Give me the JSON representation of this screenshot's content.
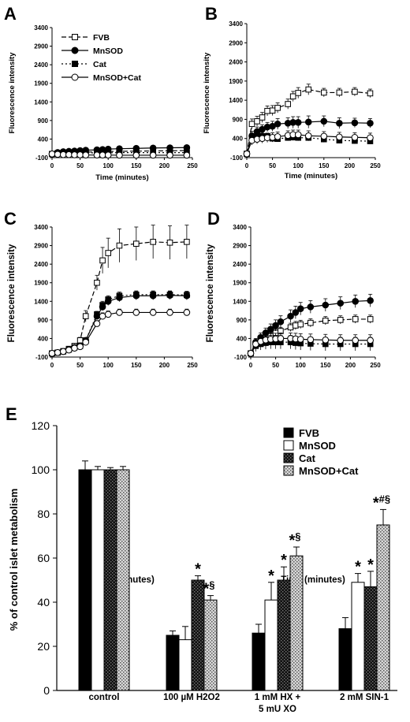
{
  "chart_data": [
    {
      "panel": "A",
      "type": "line",
      "xlabel": "Time (minutes)",
      "ylabel": "Fluorescence intensity",
      "xlim": [
        0,
        250
      ],
      "ylim": [
        -100,
        3400
      ],
      "xticks": [
        0,
        50,
        100,
        150,
        200,
        250
      ],
      "yticks": [
        -100,
        400,
        900,
        1400,
        1900,
        2400,
        2900,
        3400
      ],
      "legend": "top-left",
      "series": [
        {
          "name": "FVB",
          "x": [
            0,
            10,
            20,
            30,
            40,
            50,
            60,
            80,
            90,
            100,
            120,
            150,
            180,
            210,
            240
          ],
          "y": [
            0,
            20,
            30,
            35,
            40,
            45,
            50,
            55,
            60,
            65,
            70,
            75,
            80,
            85,
            90
          ],
          "err": [
            10,
            10,
            10,
            10,
            10,
            10,
            10,
            10,
            10,
            10,
            10,
            10,
            10,
            10,
            10
          ]
        },
        {
          "name": "MnSOD",
          "x": [
            0,
            10,
            20,
            30,
            40,
            50,
            60,
            80,
            90,
            100,
            120,
            150,
            180,
            210,
            240
          ],
          "y": [
            0,
            40,
            60,
            70,
            80,
            90,
            100,
            110,
            120,
            130,
            140,
            150,
            160,
            165,
            170
          ],
          "err": [
            15,
            15,
            15,
            15,
            15,
            15,
            15,
            15,
            15,
            15,
            15,
            15,
            15,
            15,
            15
          ]
        },
        {
          "name": "Cat",
          "x": [
            0,
            10,
            20,
            30,
            40,
            50,
            60,
            80,
            90,
            100,
            120,
            150,
            180,
            210,
            240
          ],
          "y": [
            0,
            10,
            15,
            20,
            20,
            25,
            25,
            30,
            30,
            30,
            35,
            35,
            35,
            35,
            35
          ],
          "err": [
            10,
            10,
            10,
            10,
            10,
            10,
            10,
            10,
            10,
            10,
            10,
            10,
            10,
            10,
            10
          ]
        },
        {
          "name": "MnSOD+Cat",
          "x": [
            0,
            10,
            20,
            30,
            40,
            50,
            60,
            80,
            90,
            100,
            120,
            150,
            180,
            210,
            240
          ],
          "y": [
            0,
            -10,
            -20,
            -20,
            -25,
            -25,
            -30,
            -30,
            -30,
            -30,
            -35,
            -35,
            -35,
            -35,
            -35
          ],
          "err": [
            10,
            10,
            10,
            10,
            10,
            10,
            10,
            10,
            10,
            10,
            10,
            10,
            10,
            10,
            10
          ]
        }
      ]
    },
    {
      "panel": "B",
      "type": "line",
      "xlabel": "Time (minutes)",
      "ylabel": "Fluorescence intensity",
      "xlim": [
        0,
        250
      ],
      "ylim": [
        -100,
        3400
      ],
      "xticks": [
        0,
        50,
        100,
        150,
        200,
        250
      ],
      "yticks": [
        -100,
        400,
        900,
        1400,
        1900,
        2400,
        2900,
        3400
      ],
      "series": [
        {
          "name": "FVB",
          "x": [
            0,
            10,
            20,
            30,
            40,
            50,
            60,
            80,
            90,
            100,
            120,
            150,
            180,
            210,
            240
          ],
          "y": [
            0,
            780,
            850,
            950,
            1120,
            1130,
            1200,
            1300,
            1500,
            1590,
            1680,
            1600,
            1600,
            1620,
            1580
          ],
          "err": [
            40,
            130,
            130,
            130,
            130,
            130,
            130,
            130,
            130,
            140,
            140,
            110,
            110,
            110,
            110
          ]
        },
        {
          "name": "MnSOD",
          "x": [
            0,
            10,
            20,
            30,
            40,
            50,
            60,
            80,
            90,
            100,
            120,
            150,
            180,
            210,
            240
          ],
          "y": [
            0,
            470,
            580,
            640,
            700,
            720,
            780,
            800,
            820,
            820,
            830,
            850,
            800,
            810,
            800
          ],
          "err": [
            30,
            120,
            120,
            120,
            120,
            130,
            140,
            140,
            150,
            150,
            160,
            140,
            140,
            120,
            120
          ]
        },
        {
          "name": "Cat",
          "x": [
            0,
            10,
            20,
            30,
            40,
            50,
            60,
            80,
            90,
            100,
            120,
            150,
            180,
            210,
            240
          ],
          "y": [
            0,
            420,
            450,
            460,
            460,
            400,
            390,
            420,
            430,
            420,
            420,
            380,
            350,
            340,
            330
          ],
          "err": [
            30,
            80,
            80,
            80,
            80,
            80,
            80,
            80,
            80,
            80,
            80,
            80,
            80,
            80,
            80
          ]
        },
        {
          "name": "MnSOD+Cat",
          "x": [
            0,
            10,
            20,
            30,
            40,
            50,
            60,
            80,
            90,
            100,
            120,
            150,
            180,
            210,
            240
          ],
          "y": [
            0,
            350,
            380,
            400,
            420,
            430,
            450,
            480,
            500,
            500,
            470,
            460,
            440,
            430,
            420
          ],
          "err": [
            30,
            120,
            120,
            120,
            120,
            120,
            120,
            120,
            120,
            120,
            130,
            120,
            120,
            120,
            120
          ]
        }
      ]
    },
    {
      "panel": "C",
      "type": "line",
      "xlabel": "Time (minutes)",
      "ylabel": "Fluorescence intensity",
      "xlim": [
        0,
        250
      ],
      "ylim": [
        -100,
        3400
      ],
      "xticks": [
        0,
        50,
        100,
        150,
        200,
        250
      ],
      "yticks": [
        -100,
        400,
        900,
        1400,
        1900,
        2400,
        2900,
        3400
      ],
      "series": [
        {
          "name": "FVB",
          "x": [
            0,
            10,
            20,
            30,
            40,
            50,
            60,
            80,
            90,
            100,
            120,
            150,
            180,
            210,
            240
          ],
          "y": [
            0,
            20,
            60,
            120,
            200,
            350,
            1000,
            1900,
            2500,
            2700,
            2900,
            2950,
            3000,
            2980,
            3000
          ],
          "err": [
            30,
            40,
            50,
            60,
            60,
            80,
            150,
            200,
            350,
            400,
            450,
            450,
            450,
            450,
            450
          ]
        },
        {
          "name": "MnSOD",
          "x": [
            0,
            10,
            20,
            30,
            40,
            50,
            60,
            80,
            90,
            100,
            120,
            150,
            180,
            210,
            240
          ],
          "y": [
            0,
            20,
            50,
            100,
            160,
            200,
            350,
            1000,
            1250,
            1400,
            1500,
            1550,
            1550,
            1560,
            1550
          ],
          "err": [
            30,
            30,
            30,
            40,
            40,
            40,
            50,
            80,
            100,
            110,
            110,
            110,
            110,
            110,
            110
          ]
        },
        {
          "name": "Cat",
          "x": [
            0,
            10,
            20,
            30,
            40,
            50,
            60,
            80,
            90,
            100,
            120,
            150,
            180,
            210,
            240
          ],
          "y": [
            0,
            20,
            50,
            100,
            160,
            200,
            350,
            1050,
            1300,
            1450,
            1550,
            1580,
            1580,
            1580,
            1570
          ],
          "err": [
            30,
            30,
            30,
            40,
            40,
            40,
            50,
            80,
            100,
            100,
            100,
            100,
            100,
            100,
            100
          ]
        },
        {
          "name": "MnSOD+Cat",
          "x": [
            0,
            10,
            20,
            30,
            40,
            50,
            60,
            80,
            90,
            100,
            120,
            150,
            180,
            210,
            240
          ],
          "y": [
            0,
            20,
            50,
            90,
            140,
            180,
            300,
            800,
            1000,
            1050,
            1100,
            1100,
            1100,
            1100,
            1100
          ],
          "err": [
            30,
            30,
            30,
            40,
            40,
            40,
            50,
            80,
            90,
            90,
            90,
            90,
            90,
            90,
            90
          ]
        }
      ]
    },
    {
      "panel": "D",
      "type": "line",
      "xlabel": "Time (minutes)",
      "ylabel": "Fluorescence intensity",
      "xlim": [
        0,
        250
      ],
      "ylim": [
        -100,
        3400
      ],
      "xticks": [
        0,
        50,
        100,
        150,
        200,
        250
      ],
      "yticks": [
        -100,
        400,
        900,
        1400,
        1900,
        2400,
        2900,
        3400
      ],
      "series": [
        {
          "name": "FVB",
          "x": [
            0,
            10,
            20,
            30,
            40,
            50,
            60,
            80,
            90,
            100,
            120,
            150,
            180,
            210,
            240
          ],
          "y": [
            0,
            250,
            350,
            420,
            480,
            550,
            600,
            700,
            750,
            780,
            820,
            880,
            900,
            920,
            920
          ],
          "err": [
            30,
            80,
            80,
            90,
            90,
            100,
            100,
            110,
            110,
            110,
            110,
            110,
            110,
            110,
            110
          ]
        },
        {
          "name": "MnSOD",
          "x": [
            0,
            10,
            20,
            30,
            40,
            50,
            60,
            80,
            90,
            100,
            120,
            150,
            180,
            210,
            240
          ],
          "y": [
            0,
            300,
            430,
            550,
            650,
            750,
            850,
            1000,
            1100,
            1200,
            1250,
            1300,
            1350,
            1400,
            1420
          ],
          "err": [
            30,
            100,
            120,
            130,
            140,
            150,
            160,
            170,
            170,
            170,
            170,
            170,
            170,
            170,
            170
          ]
        },
        {
          "name": "Cat",
          "x": [
            0,
            10,
            20,
            30,
            40,
            50,
            60,
            80,
            90,
            100,
            120,
            150,
            180,
            210,
            240
          ],
          "y": [
            0,
            200,
            250,
            280,
            300,
            300,
            300,
            300,
            280,
            270,
            260,
            250,
            250,
            250,
            250
          ],
          "err": [
            30,
            150,
            160,
            170,
            180,
            180,
            180,
            180,
            180,
            180,
            180,
            180,
            180,
            180,
            180
          ]
        },
        {
          "name": "MnSOD+Cat",
          "x": [
            0,
            10,
            20,
            30,
            40,
            50,
            60,
            80,
            90,
            100,
            120,
            150,
            180,
            210,
            240
          ],
          "y": [
            0,
            250,
            320,
            360,
            380,
            390,
            400,
            400,
            390,
            380,
            370,
            360,
            350,
            350,
            350
          ],
          "err": [
            30,
            120,
            130,
            140,
            150,
            150,
            150,
            150,
            150,
            150,
            150,
            150,
            150,
            150,
            150
          ]
        }
      ]
    },
    {
      "panel": "E",
      "type": "bar",
      "ylabel": "% of control islet metabolism",
      "ylim": [
        0,
        120
      ],
      "yticks": [
        0,
        20,
        40,
        60,
        80,
        100,
        120
      ],
      "legend": "top-right",
      "categories": [
        "control",
        "100 µM H2O2",
        "1 mM HX + 5 mU XO",
        "2 mM SIN-1"
      ],
      "series": [
        {
          "name": "FVB",
          "values": [
            100,
            25,
            26,
            28
          ],
          "err": [
            4,
            2,
            4,
            5
          ],
          "marks": [
            "",
            "",
            "",
            ""
          ]
        },
        {
          "name": "MnSOD",
          "values": [
            100,
            23,
            41,
            49
          ],
          "err": [
            1.5,
            6,
            8,
            4
          ],
          "marks": [
            "",
            "",
            "*",
            "*"
          ]
        },
        {
          "name": "Cat",
          "values": [
            100,
            50,
            50,
            47
          ],
          "err": [
            1,
            2,
            6,
            7
          ],
          "marks": [
            "",
            "*",
            "*",
            "*"
          ]
        },
        {
          "name": "MnSOD+Cat",
          "values": [
            100,
            41,
            61,
            75
          ],
          "err": [
            1.5,
            2,
            4,
            7
          ],
          "marks": [
            "",
            "*§",
            "*§",
            "*#§"
          ]
        }
      ]
    }
  ]
}
